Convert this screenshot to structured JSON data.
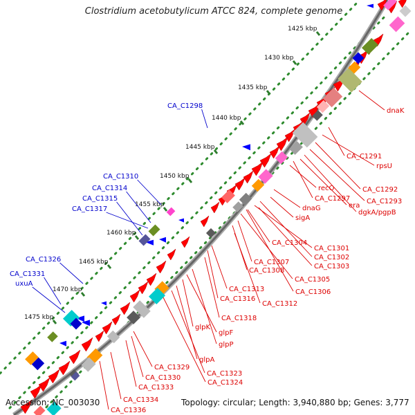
{
  "title": "Clostridium acetobutylicum ATCC 824, complete genome",
  "footer": {
    "accession": "Accession: NC_003030",
    "topology": "Topology: circular; Length: 3,940,880 bp; Genes: 3,777"
  },
  "colors": {
    "forward_gene": "#ff0000",
    "reverse_gene": "#0000ff",
    "forward_label": "#dd0000",
    "reverse_label": "#0000cc",
    "backbone": "#777777",
    "tick_dots": "#2e8b2e"
  },
  "scale": {
    "ticks": [
      "1425 kbp",
      "1430 kbp",
      "1435 kbp",
      "1440 kbp",
      "1445 kbp",
      "1450 kbp",
      "1455 kbp",
      "1460 kbp",
      "1465 kbp",
      "1470 kbp",
      "1475 kbp"
    ]
  },
  "forward_labels": [
    "dnaK",
    "CA_C1291",
    "rpsU",
    "CA_C1292",
    "CA_C1293",
    "dgkA/pgpB",
    "era",
    "CA_C1297",
    "recO",
    "dnaG",
    "sigA",
    "CA_C1304",
    "CA_C1301",
    "CA_C1302",
    "CA_C1303",
    "CA_C1307",
    "CA_C1308",
    "CA_C1305",
    "CA_C1306",
    "CA_C1313",
    "CA_C1316",
    "CA_C1312",
    "CA_C1318",
    "glpK",
    "glpF",
    "glpP",
    "glpA",
    "CA_C1329",
    "CA_C1323",
    "CA_C1330",
    "CA_C1324",
    "CA_C1333",
    "CA_C1334",
    "CA_C1336"
  ],
  "reverse_labels": [
    "CA_C1298",
    "CA_C1310",
    "CA_C1314",
    "CA_C1315",
    "CA_C1317",
    "CA_C1326",
    "CA_C1331",
    "uxuA"
  ]
}
